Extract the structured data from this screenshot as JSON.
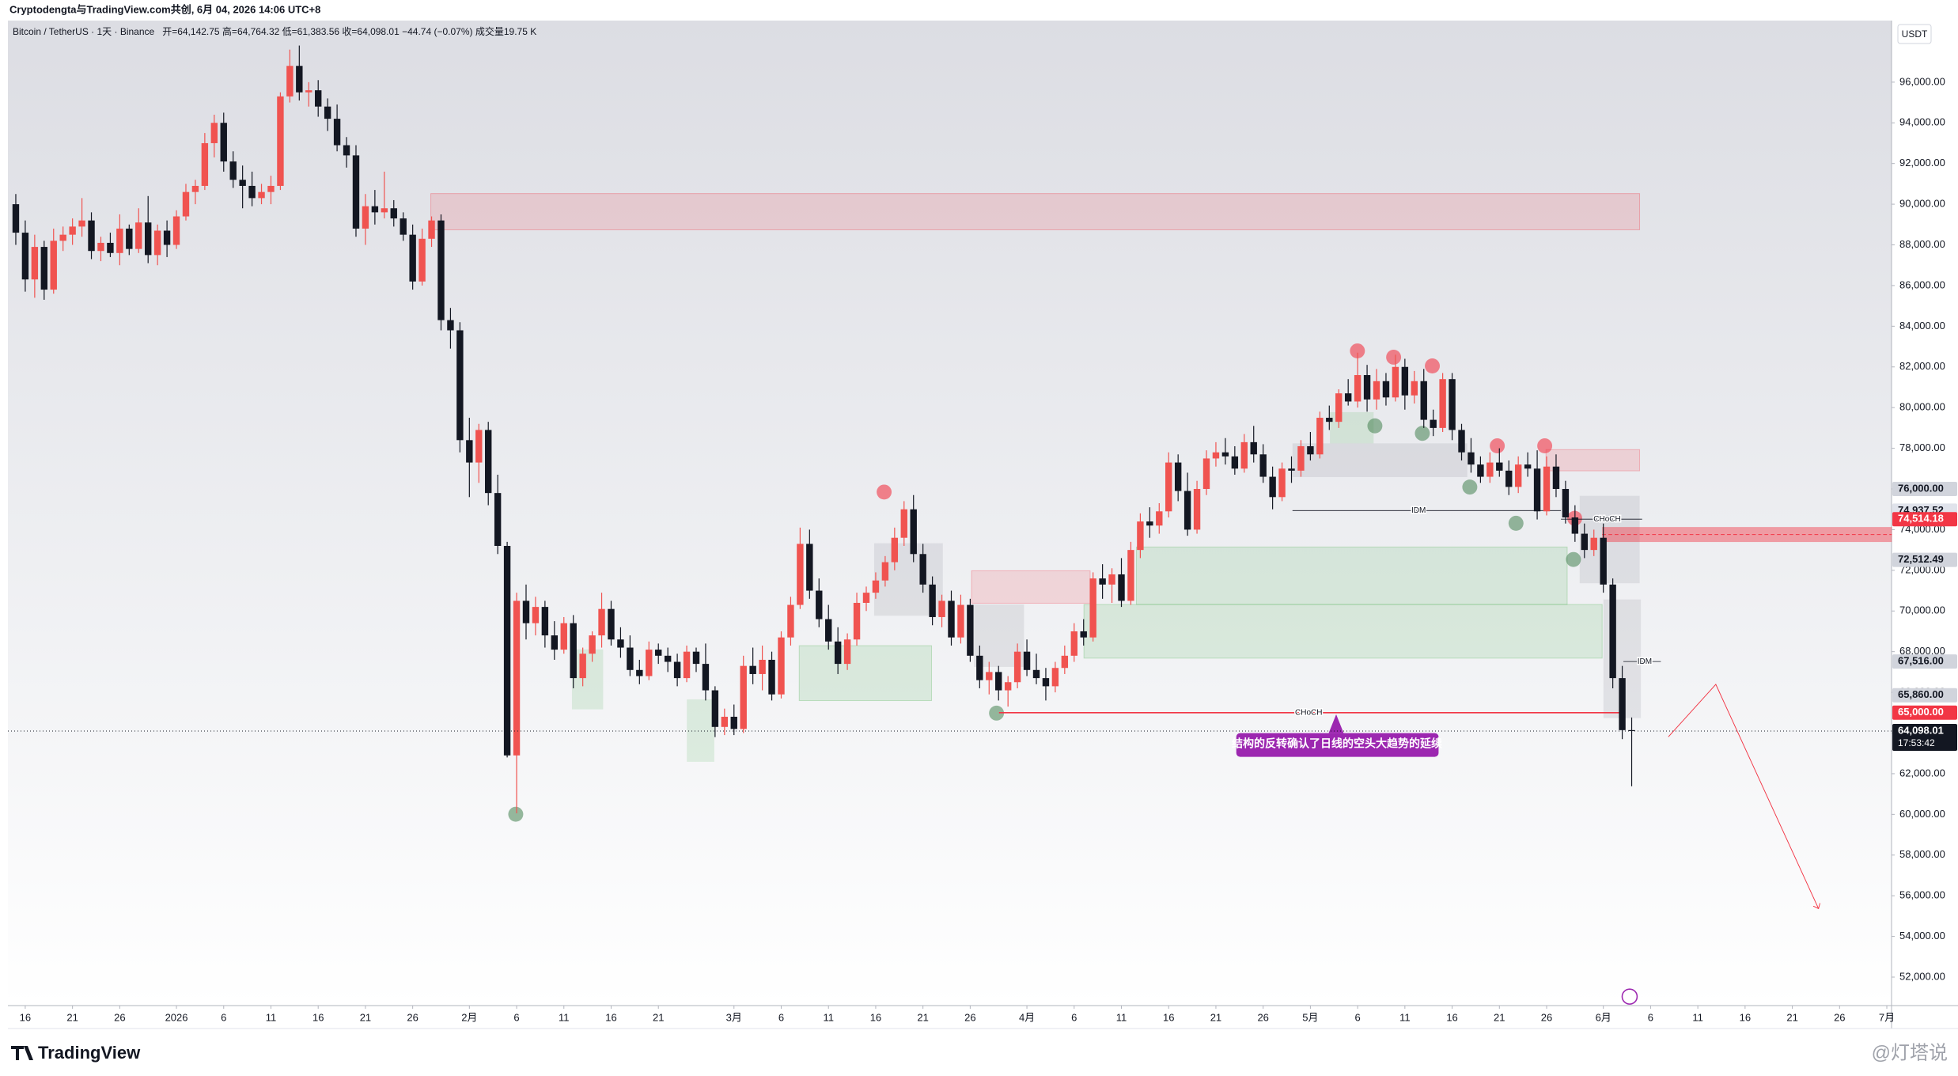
{
  "attribution": "Cryptodengta与TradingView.com共创, 6月 04, 2026 14:06 UTC+8",
  "currency_button": "USDT",
  "footer_brand": "TradingView",
  "watermark": "@灯塔说",
  "chart_data": {
    "type": "candlestick",
    "title": "Bitcoin / TetherUS · 1天 · Binance",
    "ohlc_legend": "开=64,142.75 高=64,764.32 低=61,383.56 收=64,098.01 −44.74 (−0.07%) 成交量19.75 K",
    "up_color": "#f05350",
    "down_color": "#131722",
    "grid": false,
    "ylim": [
      50600,
      98950
    ],
    "yticks": [
      {
        "value": 52000,
        "label": "52,000.00"
      },
      {
        "value": 54000,
        "label": "54,000.00"
      },
      {
        "value": 56000,
        "label": "56,000.00"
      },
      {
        "value": 58000,
        "label": "58,000.00"
      },
      {
        "value": 60000,
        "label": "60,000.00"
      },
      {
        "value": 62000,
        "label": "62,000.00"
      },
      {
        "value": 64000,
        "label": "64,000.00"
      },
      {
        "value": 66000,
        "label": "66,000.00"
      },
      {
        "value": 68000,
        "label": "68,000.00"
      },
      {
        "value": 70000,
        "label": "70,000.00"
      },
      {
        "value": 72000,
        "label": "72,000.00"
      },
      {
        "value": 74000,
        "label": "74,000.00"
      },
      {
        "value": 76000,
        "label": "76,000.00"
      },
      {
        "value": 78000,
        "label": "78,000.00"
      },
      {
        "value": 80000,
        "label": "80,000.00"
      },
      {
        "value": 82000,
        "label": "82,000.00"
      },
      {
        "value": 84000,
        "label": "84,000.00"
      },
      {
        "value": 86000,
        "label": "86,000.00"
      },
      {
        "value": 88000,
        "label": "88,000.00"
      },
      {
        "value": 90000,
        "label": "90,000.00"
      },
      {
        "value": 92000,
        "label": "92,000.00"
      },
      {
        "value": 94000,
        "label": "94,000.00"
      },
      {
        "value": 96000,
        "label": "96,000.00"
      }
    ],
    "categories": [
      null,
      "16",
      null,
      null,
      null,
      null,
      "21",
      null,
      null,
      null,
      null,
      "26",
      null,
      null,
      null,
      null,
      null,
      "2026",
      null,
      null,
      null,
      null,
      "6",
      null,
      null,
      null,
      null,
      "11",
      null,
      null,
      null,
      null,
      "16",
      null,
      null,
      null,
      null,
      "21",
      null,
      null,
      null,
      null,
      "26",
      null,
      null,
      null,
      null,
      null,
      "2月",
      null,
      null,
      null,
      null,
      "6",
      null,
      null,
      null,
      null,
      "11",
      null,
      null,
      null,
      null,
      "16",
      null,
      null,
      null,
      null,
      "21",
      null,
      null,
      null,
      null,
      null,
      null,
      null,
      "3月",
      null,
      null,
      null,
      null,
      "6",
      null,
      null,
      null,
      null,
      "11",
      null,
      null,
      null,
      null,
      "16",
      null,
      null,
      null,
      null,
      "21",
      null,
      null,
      null,
      null,
      "26",
      null,
      null,
      null,
      null,
      null,
      "4月",
      null,
      null,
      null,
      null,
      "6",
      null,
      null,
      null,
      null,
      "11",
      null,
      null,
      null,
      null,
      "16",
      null,
      null,
      null,
      null,
      "21",
      null,
      null,
      null,
      null,
      "26",
      null,
      null,
      null,
      null,
      "5月",
      null,
      null,
      null,
      null,
      "6",
      null,
      null,
      null,
      null,
      "11",
      null,
      null,
      null,
      null,
      "16",
      null,
      null,
      null,
      null,
      "21",
      null,
      null,
      null,
      null,
      "26",
      null,
      null,
      null,
      null,
      null,
      "6月",
      null,
      null,
      null,
      null,
      "6",
      null,
      null,
      null,
      null,
      "11",
      null,
      null,
      null,
      null,
      "16",
      null,
      null,
      null,
      null,
      "21",
      null,
      null,
      null,
      null,
      "26",
      null,
      null,
      null,
      null,
      "7月"
    ],
    "candles": [
      [
        90000,
        90500,
        88000,
        88600
      ],
      [
        88600,
        89200,
        85700,
        86300
      ],
      [
        86300,
        88500,
        85400,
        87900
      ],
      [
        87900,
        88200,
        85300,
        85800
      ],
      [
        85800,
        88800,
        85600,
        88200
      ],
      [
        88200,
        88900,
        87700,
        88500
      ],
      [
        88500,
        89300,
        88000,
        88900
      ],
      [
        88900,
        90300,
        88400,
        89200
      ],
      [
        89200,
        89600,
        87300,
        87700
      ],
      [
        87700,
        88400,
        87200,
        88100
      ],
      [
        88100,
        88600,
        87400,
        87600
      ],
      [
        87600,
        89500,
        87000,
        88800
      ],
      [
        88800,
        89000,
        87500,
        87800
      ],
      [
        87800,
        89800,
        87600,
        89100
      ],
      [
        89100,
        90400,
        87100,
        87500
      ],
      [
        87500,
        89000,
        87000,
        88700
      ],
      [
        88700,
        89200,
        87400,
        88000
      ],
      [
        88000,
        89700,
        87800,
        89400
      ],
      [
        89400,
        91000,
        89200,
        90600
      ],
      [
        90600,
        91200,
        90000,
        90900
      ],
      [
        90900,
        93500,
        90700,
        93000
      ],
      [
        93000,
        94400,
        92300,
        94000
      ],
      [
        94000,
        94500,
        91600,
        92100
      ],
      [
        92100,
        92600,
        90800,
        91200
      ],
      [
        91200,
        91900,
        89800,
        90900
      ],
      [
        90900,
        91600,
        89900,
        90300
      ],
      [
        90300,
        91000,
        90000,
        90600
      ],
      [
        90600,
        91400,
        90000,
        90900
      ],
      [
        90900,
        95500,
        90700,
        95300
      ],
      [
        95300,
        97600,
        95000,
        96800
      ],
      [
        96800,
        97800,
        95100,
        95500
      ],
      [
        95500,
        96000,
        94800,
        95600
      ],
      [
        95600,
        96100,
        94300,
        94800
      ],
      [
        94800,
        95200,
        93600,
        94200
      ],
      [
        94200,
        94900,
        92600,
        92900
      ],
      [
        92900,
        93300,
        91800,
        92400
      ],
      [
        92400,
        92900,
        88400,
        88800
      ],
      [
        88800,
        90500,
        88000,
        89900
      ],
      [
        89900,
        90700,
        89000,
        89600
      ],
      [
        89600,
        91600,
        89300,
        89800
      ],
      [
        89800,
        90200,
        88900,
        89300
      ],
      [
        89300,
        89600,
        88200,
        88500
      ],
      [
        88500,
        89000,
        85800,
        86200
      ],
      [
        86200,
        88800,
        86000,
        88300
      ],
      [
        88300,
        89400,
        87900,
        89200
      ],
      [
        89200,
        89500,
        83800,
        84300
      ],
      [
        84300,
        84900,
        82900,
        83800
      ],
      [
        83800,
        84200,
        77800,
        78400
      ],
      [
        78400,
        79500,
        75600,
        77300
      ],
      [
        77300,
        79200,
        76300,
        78900
      ],
      [
        78900,
        79300,
        75200,
        75800
      ],
      [
        75800,
        76700,
        72800,
        73200
      ],
      [
        73200,
        73400,
        62800,
        62900
      ],
      [
        62900,
        70900,
        60050,
        70500
      ],
      [
        70500,
        71300,
        68600,
        69400
      ],
      [
        69400,
        70700,
        68800,
        70200
      ],
      [
        70200,
        70500,
        68200,
        68800
      ],
      [
        68800,
        69500,
        67600,
        68100
      ],
      [
        68100,
        69700,
        67900,
        69400
      ],
      [
        69400,
        69800,
        66200,
        66700
      ],
      [
        66700,
        68200,
        66300,
        67900
      ],
      [
        67900,
        69000,
        67500,
        68800
      ],
      [
        68800,
        70900,
        68200,
        70100
      ],
      [
        70100,
        70500,
        68300,
        68600
      ],
      [
        68600,
        69200,
        67700,
        68200
      ],
      [
        68200,
        68800,
        66800,
        67100
      ],
      [
        67100,
        67600,
        66400,
        66800
      ],
      [
        66800,
        68500,
        66600,
        68100
      ],
      [
        68100,
        68400,
        67400,
        67800
      ],
      [
        67800,
        68200,
        67000,
        67500
      ],
      [
        67500,
        67900,
        66300,
        66700
      ],
      [
        66700,
        68300,
        66500,
        68000
      ],
      [
        68000,
        68200,
        67000,
        67400
      ],
      [
        67400,
        68400,
        65600,
        66100
      ],
      [
        66100,
        66300,
        63800,
        64300
      ],
      [
        64300,
        65200,
        63900,
        64800
      ],
      [
        64800,
        65400,
        63900,
        64200
      ],
      [
        64200,
        67800,
        64000,
        67300
      ],
      [
        67300,
        68200,
        66400,
        66900
      ],
      [
        66900,
        68300,
        66100,
        67600
      ],
      [
        67600,
        68000,
        65600,
        65900
      ],
      [
        65900,
        69000,
        65700,
        68700
      ],
      [
        68700,
        70700,
        68300,
        70300
      ],
      [
        70300,
        74100,
        70100,
        73300
      ],
      [
        73300,
        74000,
        70600,
        71000
      ],
      [
        71000,
        71600,
        69200,
        69600
      ],
      [
        69600,
        70300,
        68100,
        68500
      ],
      [
        68500,
        69200,
        66900,
        67400
      ],
      [
        67400,
        68900,
        67100,
        68600
      ],
      [
        68600,
        70900,
        68300,
        70400
      ],
      [
        70400,
        71200,
        70000,
        70900
      ],
      [
        70900,
        71900,
        70600,
        71500
      ],
      [
        71500,
        72700,
        71200,
        72400
      ],
      [
        72400,
        74100,
        72000,
        73600
      ],
      [
        73600,
        75400,
        73200,
        75000
      ],
      [
        75000,
        75700,
        72400,
        72800
      ],
      [
        72800,
        73300,
        70900,
        71300
      ],
      [
        71300,
        71700,
        69300,
        69700
      ],
      [
        69700,
        70800,
        69200,
        70500
      ],
      [
        70500,
        71000,
        68300,
        68700
      ],
      [
        68700,
        70800,
        68400,
        70300
      ],
      [
        70300,
        70600,
        67500,
        67800
      ],
      [
        67800,
        68300,
        66200,
        66600
      ],
      [
        66600,
        67500,
        65900,
        67000
      ],
      [
        67000,
        67300,
        65600,
        66100
      ],
      [
        66100,
        66800,
        65300,
        66500
      ],
      [
        66500,
        68400,
        66200,
        68000
      ],
      [
        68000,
        68600,
        66800,
        67100
      ],
      [
        67100,
        67900,
        66400,
        66700
      ],
      [
        66700,
        67200,
        65600,
        66300
      ],
      [
        66300,
        67500,
        66000,
        67200
      ],
      [
        67200,
        68300,
        66900,
        67800
      ],
      [
        67800,
        69400,
        67500,
        69000
      ],
      [
        69000,
        69600,
        68300,
        68700
      ],
      [
        68700,
        71900,
        68500,
        71600
      ],
      [
        71600,
        72300,
        70600,
        71300
      ],
      [
        71300,
        72100,
        70400,
        71800
      ],
      [
        71800,
        72600,
        70200,
        70500
      ],
      [
        70500,
        73400,
        70300,
        73000
      ],
      [
        73000,
        74800,
        72600,
        74400
      ],
      [
        74400,
        75100,
        73600,
        74200
      ],
      [
        74200,
        75300,
        73800,
        74900
      ],
      [
        74900,
        77800,
        74600,
        77300
      ],
      [
        77300,
        77700,
        75400,
        75900
      ],
      [
        75900,
        76800,
        73700,
        74000
      ],
      [
        74000,
        76400,
        73800,
        76000
      ],
      [
        76000,
        77900,
        75700,
        77500
      ],
      [
        77500,
        78300,
        77100,
        77800
      ],
      [
        77800,
        78500,
        77200,
        77600
      ],
      [
        77600,
        78100,
        76700,
        77000
      ],
      [
        77000,
        78700,
        76800,
        78300
      ],
      [
        78300,
        79100,
        77300,
        77700
      ],
      [
        77700,
        78200,
        76300,
        76600
      ],
      [
        76600,
        77100,
        75000,
        75600
      ],
      [
        75600,
        77300,
        75400,
        77000
      ],
      [
        77000,
        77600,
        76300,
        76900
      ],
      [
        76900,
        78400,
        76600,
        78100
      ],
      [
        78100,
        78800,
        77400,
        77700
      ],
      [
        77700,
        79800,
        77500,
        79500
      ],
      [
        79500,
        80100,
        78900,
        79300
      ],
      [
        79300,
        80900,
        79000,
        80700
      ],
      [
        80700,
        81400,
        80100,
        80300
      ],
      [
        80300,
        82700,
        80000,
        81600
      ],
      [
        81600,
        82100,
        79800,
        80400
      ],
      [
        80400,
        81900,
        79900,
        81300
      ],
      [
        81300,
        81700,
        80100,
        80500
      ],
      [
        80500,
        82600,
        80300,
        82000
      ],
      [
        82000,
        82400,
        79900,
        80600
      ],
      [
        80600,
        81800,
        80200,
        81300
      ],
      [
        81300,
        81900,
        79000,
        79400
      ],
      [
        79400,
        79900,
        78600,
        79000
      ],
      [
        79000,
        81700,
        78800,
        81400
      ],
      [
        81400,
        81700,
        78400,
        78900
      ],
      [
        78900,
        79200,
        77400,
        77800
      ],
      [
        77800,
        78500,
        76800,
        77200
      ],
      [
        77200,
        77600,
        76300,
        76600
      ],
      [
        76600,
        77800,
        76300,
        77300
      ],
      [
        77300,
        78000,
        76600,
        76900
      ],
      [
        76900,
        77400,
        75700,
        76100
      ],
      [
        76100,
        77600,
        75800,
        77200
      ],
      [
        77200,
        77800,
        76600,
        77000
      ],
      [
        77000,
        77900,
        74500,
        74900
      ],
      [
        74900,
        77600,
        74700,
        77100
      ],
      [
        77100,
        77700,
        75600,
        76000
      ],
      [
        76000,
        76400,
        74300,
        74600
      ],
      [
        74600,
        75200,
        73400,
        73800
      ],
      [
        73800,
        74300,
        72600,
        73000
      ],
      [
        73000,
        74000,
        72700,
        73600
      ],
      [
        73600,
        74300,
        70900,
        71300
      ],
      [
        71300,
        71600,
        66200,
        66700
      ],
      [
        66700,
        67300,
        63700,
        64142.75
      ],
      [
        64142.75,
        64764.32,
        61383.56,
        64098.01
      ],
      null,
      null,
      null,
      null,
      null,
      null,
      null,
      null,
      null,
      null,
      null,
      null,
      null,
      null,
      null,
      null,
      null,
      null,
      null,
      null,
      null,
      null,
      null,
      null,
      null,
      null,
      null
    ],
    "levels": [
      {
        "text": "CHoCH",
        "value": 65000
      },
      {
        "text": "CHoCH",
        "value": 74514.18
      },
      {
        "text": "IDM",
        "value": 74937.52
      },
      {
        "text": "IDM",
        "value": 67516
      }
    ],
    "annotation": "结构的反转确认了日线的空头大趋势的延续",
    "price_labels": [
      {
        "value": 76000,
        "label": "76,000.00",
        "color": "#d1d4dc",
        "text_color": "#131722"
      },
      {
        "value": 74937.52,
        "label": "74,937.52",
        "color": "#e0e3eb",
        "text_color": "#131722"
      },
      {
        "value": 74514.18,
        "label": "74,514.18",
        "color": "#f23645",
        "text_color": "#ffffff"
      },
      {
        "value": 72512.49,
        "label": "72,512.49",
        "color": "#d1d4dc",
        "text_color": "#131722"
      },
      {
        "value": 67516,
        "label": "67,516.00",
        "color": "#d1d4dc",
        "text_color": "#131722"
      },
      {
        "value": 65860,
        "label": "65,860.00",
        "color": "#d1d4dc",
        "text_color": "#131722"
      },
      {
        "value": 65000,
        "label": "65,000.00",
        "color": "#f23645",
        "text_color": "#ffffff"
      },
      {
        "value": 64098.01,
        "label": "64,098.01",
        "countdown": "17:53:42",
        "color": "#131722",
        "text_color": "#ffffff"
      }
    ]
  }
}
